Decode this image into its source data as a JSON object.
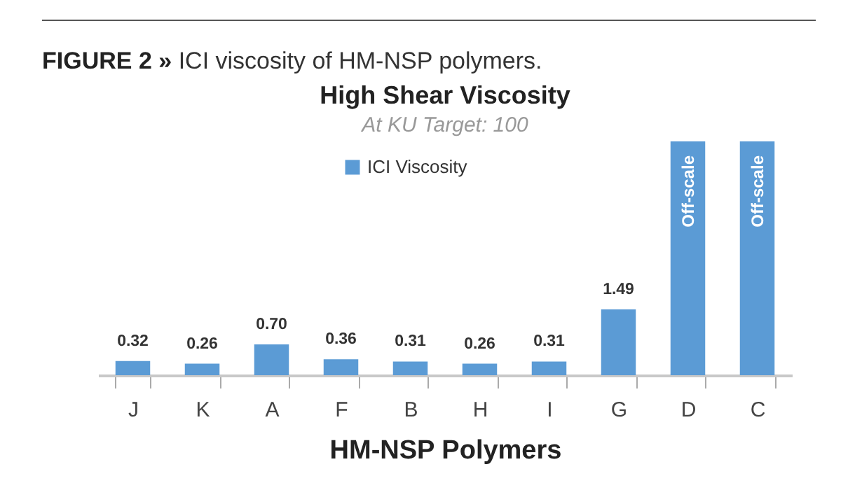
{
  "chart_data": {
    "type": "bar",
    "title": "High Shear Viscosity",
    "subtitle": "At KU Target: 100",
    "xlabel": "HM-NSP Polymers",
    "annotations": [
      "FIGURE 2 »",
      "ICI viscosity of HM-NSP polymers."
    ],
    "categories": [
      "J",
      "K",
      "A",
      "F",
      "B",
      "H",
      "I",
      "G",
      "D",
      "C"
    ],
    "series": [
      {
        "name": "ICI Viscosity",
        "color": "#5b9bd5",
        "values": [
          0.32,
          0.26,
          0.7,
          0.36,
          0.31,
          0.26,
          0.31,
          1.49,
          5.3,
          5.3
        ],
        "value_labels": [
          "0.32",
          "0.26",
          "0.70",
          "0.36",
          "0.31",
          "0.26",
          "0.31",
          "1.49",
          "Off-scale",
          "Off-scale"
        ]
      }
    ],
    "legend": "top",
    "grid": false
  }
}
